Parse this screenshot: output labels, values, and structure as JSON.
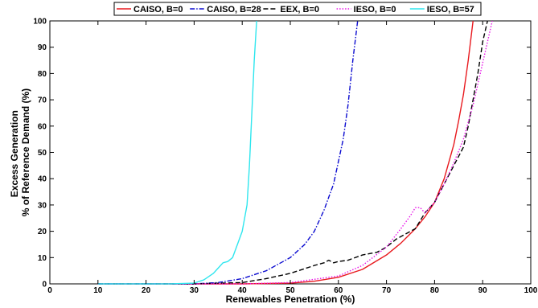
{
  "chart_data": {
    "type": "line",
    "xlabel": "Renewables Penetration (%)",
    "ylabel": [
      "Excess Generation",
      "% of Reference Demand (%)"
    ],
    "xlim": [
      0,
      100
    ],
    "ylim": [
      0,
      100
    ],
    "xticks": [
      0,
      10,
      20,
      30,
      40,
      50,
      60,
      70,
      80,
      90,
      100
    ],
    "yticks": [
      0,
      10,
      20,
      30,
      40,
      50,
      60,
      70,
      80,
      90,
      100
    ],
    "grid": false,
    "legend_placement": "top-outside",
    "series": [
      {
        "name": "CAISO, B=0",
        "color": "#e8191e",
        "dash": "solid",
        "x": [
          10,
          20,
          30,
          40,
          50,
          55,
          60,
          65,
          70,
          73,
          76,
          78,
          80,
          82,
          84,
          85,
          86,
          87,
          88
        ],
        "y": [
          0,
          0,
          0,
          0,
          0.3,
          1,
          2.5,
          5.5,
          11,
          15.5,
          21,
          25.5,
          31,
          40,
          53,
          62,
          72,
          85,
          100
        ]
      },
      {
        "name": "CAISO, B=28",
        "color": "#0b0bd0",
        "dash": "dashdot",
        "x": [
          10,
          20,
          30,
          35,
          40,
          45,
          50,
          53,
          55,
          57,
          59,
          61,
          62,
          63,
          64
        ],
        "y": [
          0,
          0,
          0,
          0.5,
          2,
          5,
          10,
          15,
          20,
          28,
          38,
          55,
          68,
          85,
          100
        ]
      },
      {
        "name": "EEX, B=0",
        "color": "#000000",
        "dash": "dashed",
        "x": [
          10,
          20,
          30,
          40,
          45,
          50,
          55,
          57,
          58,
          59,
          60,
          62,
          65,
          68,
          70,
          72,
          74,
          76,
          78,
          80,
          82,
          84,
          86,
          87,
          88,
          89,
          90,
          91
        ],
        "y": [
          0,
          0,
          0,
          0.5,
          2,
          4,
          7,
          8,
          9,
          8,
          8.5,
          9,
          11,
          12,
          14,
          17,
          19,
          21,
          27,
          31,
          38,
          45,
          52,
          60,
          70,
          80,
          92,
          100
        ]
      },
      {
        "name": "IESO, B=0",
        "color": "#e815e8",
        "dash": "dotted",
        "x": [
          10,
          20,
          30,
          40,
          50,
          60,
          65,
          70,
          73,
          75,
          76,
          77,
          78,
          80,
          82,
          84,
          86,
          88,
          89,
          90,
          91,
          92
        ],
        "y": [
          0,
          0,
          0,
          0,
          0.5,
          3,
          7,
          14,
          21,
          26,
          29,
          29,
          27,
          31,
          38,
          46,
          55,
          68,
          76,
          84,
          92,
          100
        ]
      },
      {
        "name": "IESO, B=57",
        "color": "#2fe6ee",
        "dash": "solid",
        "x": [
          10,
          20,
          25,
          30,
          32,
          34,
          35,
          36,
          37,
          38,
          39,
          40,
          41,
          41.5,
          42,
          42.5,
          43
        ],
        "y": [
          0,
          0,
          0,
          0.3,
          1.5,
          4,
          6,
          8,
          8.5,
          10,
          15,
          20,
          30,
          45,
          65,
          85,
          100
        ]
      }
    ]
  }
}
